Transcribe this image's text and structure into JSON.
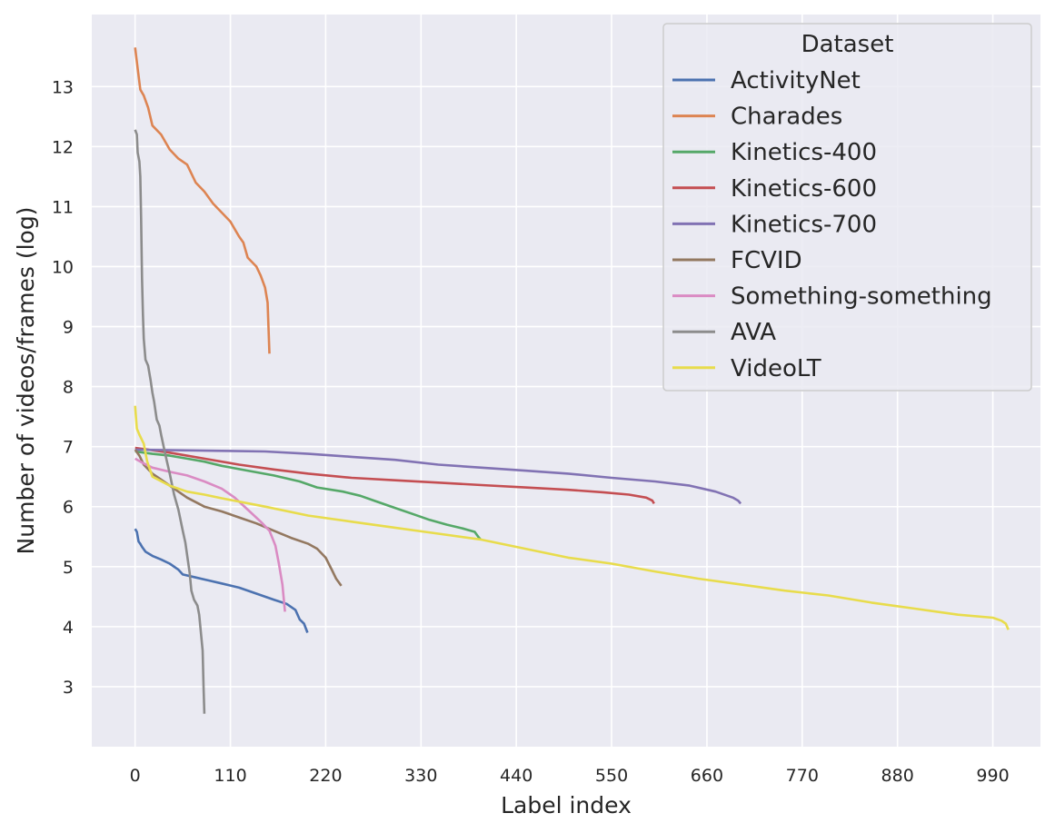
{
  "chart_data": {
    "type": "line",
    "xlabel": "Label index",
    "ylabel": "Number of videos/frames (log)",
    "xlim": [
      -50,
      1045
    ],
    "ylim": [
      2.0,
      14.2
    ],
    "xticks": [
      0,
      110,
      220,
      330,
      440,
      550,
      660,
      770,
      880,
      990
    ],
    "yticks": [
      3,
      4,
      5,
      6,
      7,
      8,
      9,
      10,
      11,
      12,
      13
    ],
    "grid": true,
    "legend": {
      "title": "Dataset",
      "placement": "top-right"
    },
    "series": [
      {
        "name": "ActivityNet",
        "color": "#4c72b0",
        "points": [
          [
            0,
            5.63
          ],
          [
            2,
            5.58
          ],
          [
            4,
            5.42
          ],
          [
            6,
            5.38
          ],
          [
            8,
            5.33
          ],
          [
            12,
            5.25
          ],
          [
            20,
            5.18
          ],
          [
            30,
            5.12
          ],
          [
            40,
            5.05
          ],
          [
            50,
            4.95
          ],
          [
            55,
            4.87
          ],
          [
            70,
            4.82
          ],
          [
            85,
            4.77
          ],
          [
            100,
            4.72
          ],
          [
            120,
            4.65
          ],
          [
            140,
            4.55
          ],
          [
            160,
            4.45
          ],
          [
            175,
            4.38
          ],
          [
            185,
            4.28
          ],
          [
            190,
            4.12
          ],
          [
            195,
            4.05
          ],
          [
            199,
            3.9
          ]
        ]
      },
      {
        "name": "Charades",
        "color": "#dd8452",
        "points": [
          [
            0,
            13.65
          ],
          [
            3,
            13.3
          ],
          [
            6,
            12.95
          ],
          [
            10,
            12.85
          ],
          [
            15,
            12.65
          ],
          [
            20,
            12.35
          ],
          [
            30,
            12.2
          ],
          [
            40,
            11.95
          ],
          [
            50,
            11.8
          ],
          [
            60,
            11.7
          ],
          [
            70,
            11.4
          ],
          [
            80,
            11.25
          ],
          [
            90,
            11.05
          ],
          [
            100,
            10.9
          ],
          [
            110,
            10.75
          ],
          [
            120,
            10.5
          ],
          [
            125,
            10.4
          ],
          [
            130,
            10.15
          ],
          [
            140,
            10.0
          ],
          [
            145,
            9.85
          ],
          [
            150,
            9.65
          ],
          [
            153,
            9.4
          ],
          [
            155,
            8.55
          ]
        ]
      },
      {
        "name": "Kinetics-400",
        "color": "#55a868",
        "points": [
          [
            0,
            6.92
          ],
          [
            20,
            6.88
          ],
          [
            40,
            6.85
          ],
          [
            60,
            6.8
          ],
          [
            80,
            6.75
          ],
          [
            100,
            6.68
          ],
          [
            130,
            6.6
          ],
          [
            160,
            6.52
          ],
          [
            190,
            6.42
          ],
          [
            210,
            6.32
          ],
          [
            240,
            6.25
          ],
          [
            260,
            6.18
          ],
          [
            280,
            6.08
          ],
          [
            300,
            5.98
          ],
          [
            320,
            5.88
          ],
          [
            340,
            5.78
          ],
          [
            360,
            5.7
          ],
          [
            380,
            5.63
          ],
          [
            392,
            5.58
          ],
          [
            396,
            5.5
          ],
          [
            399,
            5.45
          ]
        ]
      },
      {
        "name": "Kinetics-600",
        "color": "#c44e52",
        "points": [
          [
            0,
            6.98
          ],
          [
            40,
            6.9
          ],
          [
            80,
            6.8
          ],
          [
            120,
            6.7
          ],
          [
            160,
            6.62
          ],
          [
            200,
            6.55
          ],
          [
            250,
            6.48
          ],
          [
            300,
            6.44
          ],
          [
            350,
            6.4
          ],
          [
            400,
            6.36
          ],
          [
            450,
            6.32
          ],
          [
            500,
            6.28
          ],
          [
            540,
            6.24
          ],
          [
            570,
            6.2
          ],
          [
            590,
            6.15
          ],
          [
            597,
            6.1
          ],
          [
            599,
            6.05
          ]
        ]
      },
      {
        "name": "Kinetics-700",
        "color": "#8172b3",
        "points": [
          [
            0,
            6.95
          ],
          [
            100,
            6.93
          ],
          [
            150,
            6.92
          ],
          [
            200,
            6.88
          ],
          [
            250,
            6.83
          ],
          [
            300,
            6.78
          ],
          [
            350,
            6.7
          ],
          [
            400,
            6.65
          ],
          [
            450,
            6.6
          ],
          [
            500,
            6.55
          ],
          [
            550,
            6.48
          ],
          [
            600,
            6.42
          ],
          [
            640,
            6.35
          ],
          [
            670,
            6.25
          ],
          [
            690,
            6.15
          ],
          [
            696,
            6.1
          ],
          [
            699,
            6.05
          ]
        ]
      },
      {
        "name": "FCVID",
        "color": "#937860",
        "points": [
          [
            0,
            6.95
          ],
          [
            5,
            6.85
          ],
          [
            10,
            6.7
          ],
          [
            20,
            6.55
          ],
          [
            30,
            6.45
          ],
          [
            45,
            6.3
          ],
          [
            60,
            6.15
          ],
          [
            80,
            6.0
          ],
          [
            100,
            5.92
          ],
          [
            120,
            5.82
          ],
          [
            140,
            5.72
          ],
          [
            160,
            5.6
          ],
          [
            180,
            5.48
          ],
          [
            200,
            5.38
          ],
          [
            210,
            5.3
          ],
          [
            220,
            5.15
          ],
          [
            227,
            4.95
          ],
          [
            232,
            4.8
          ],
          [
            238,
            4.68
          ]
        ]
      },
      {
        "name": "Something-something",
        "color": "#da8bc3",
        "points": [
          [
            0,
            6.8
          ],
          [
            10,
            6.72
          ],
          [
            20,
            6.65
          ],
          [
            40,
            6.58
          ],
          [
            60,
            6.52
          ],
          [
            80,
            6.42
          ],
          [
            100,
            6.3
          ],
          [
            115,
            6.15
          ],
          [
            130,
            5.95
          ],
          [
            145,
            5.75
          ],
          [
            155,
            5.6
          ],
          [
            162,
            5.35
          ],
          [
            166,
            5.05
          ],
          [
            170,
            4.7
          ],
          [
            173,
            4.25
          ]
        ]
      },
      {
        "name": "AVA",
        "color": "#8c8c8c",
        "points": [
          [
            0,
            12.28
          ],
          [
            2,
            12.2
          ],
          [
            3,
            11.9
          ],
          [
            5,
            11.75
          ],
          [
            6,
            11.5
          ],
          [
            7,
            10.8
          ],
          [
            8,
            9.8
          ],
          [
            9,
            9.2
          ],
          [
            10,
            8.8
          ],
          [
            12,
            8.45
          ],
          [
            15,
            8.35
          ],
          [
            18,
            8.1
          ],
          [
            20,
            7.9
          ],
          [
            22,
            7.75
          ],
          [
            25,
            7.45
          ],
          [
            28,
            7.35
          ],
          [
            30,
            7.2
          ],
          [
            33,
            7.0
          ],
          [
            36,
            6.8
          ],
          [
            40,
            6.55
          ],
          [
            45,
            6.2
          ],
          [
            50,
            5.95
          ],
          [
            55,
            5.6
          ],
          [
            58,
            5.4
          ],
          [
            61,
            5.1
          ],
          [
            63,
            4.9
          ],
          [
            65,
            4.6
          ],
          [
            68,
            4.45
          ],
          [
            72,
            4.35
          ],
          [
            74,
            4.2
          ],
          [
            76,
            3.9
          ],
          [
            78,
            3.6
          ],
          [
            79,
            3.0
          ],
          [
            80,
            2.55
          ]
        ]
      },
      {
        "name": "VideoLT",
        "color": "#ccb974",
        "points": [
          [
            0,
            7.68
          ],
          [
            2,
            7.3
          ],
          [
            5,
            7.2
          ],
          [
            10,
            7.05
          ],
          [
            14,
            6.75
          ],
          [
            20,
            6.5
          ],
          [
            40,
            6.35
          ],
          [
            60,
            6.25
          ],
          [
            80,
            6.2
          ],
          [
            100,
            6.14
          ],
          [
            150,
            6.0
          ],
          [
            200,
            5.85
          ],
          [
            250,
            5.75
          ],
          [
            300,
            5.65
          ],
          [
            350,
            5.55
          ],
          [
            400,
            5.45
          ],
          [
            450,
            5.3
          ],
          [
            500,
            5.15
          ],
          [
            550,
            5.05
          ],
          [
            600,
            4.92
          ],
          [
            650,
            4.8
          ],
          [
            700,
            4.7
          ],
          [
            750,
            4.6
          ],
          [
            800,
            4.52
          ],
          [
            850,
            4.4
          ],
          [
            900,
            4.3
          ],
          [
            950,
            4.2
          ],
          [
            990,
            4.15
          ],
          [
            1000,
            4.1
          ],
          [
            1005,
            4.05
          ],
          [
            1008,
            3.95
          ]
        ]
      }
    ]
  },
  "colors": {
    "plot_background": "#eaeaf2",
    "grid": "#ffffff",
    "legend_background": "#eaeaf2",
    "legend_border": "#cccccc",
    "text": "#262626",
    "videolt_display": "#e8dc4c"
  }
}
